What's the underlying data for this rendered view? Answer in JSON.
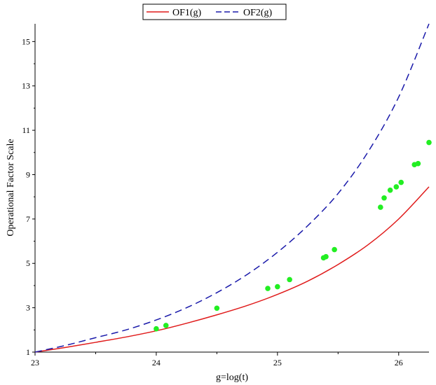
{
  "chart_data": {
    "type": "line",
    "xlabel": "g=log(t)",
    "ylabel": "Operational Factor Scale",
    "xlim": [
      23,
      26.25
    ],
    "ylim": [
      1,
      15.8
    ],
    "x_ticks": [
      23,
      24,
      25,
      26
    ],
    "y_ticks": [
      1,
      3,
      5,
      7,
      9,
      11,
      13,
      15
    ],
    "legend_placement": "top-center",
    "series": [
      {
        "name": "OF1(g)",
        "style": "solid",
        "color": "#e01b1b",
        "x": [
          23.0,
          23.25,
          23.5,
          23.75,
          24.0,
          24.25,
          24.5,
          24.75,
          25.0,
          25.25,
          25.5,
          25.75,
          26.0,
          26.25
        ],
        "y": [
          1.0,
          1.21,
          1.44,
          1.68,
          1.96,
          2.3,
          2.68,
          3.1,
          3.6,
          4.2,
          4.95,
          5.85,
          7.0,
          8.45
        ]
      },
      {
        "name": "OF2(g)",
        "style": "dashed",
        "color": "#1a1aaa",
        "x": [
          23.0,
          23.25,
          23.5,
          23.75,
          24.0,
          24.25,
          24.5,
          24.75,
          25.0,
          25.25,
          25.5,
          25.75,
          26.0,
          26.25
        ],
        "y": [
          1.0,
          1.3,
          1.65,
          2.0,
          2.45,
          3.0,
          3.68,
          4.5,
          5.5,
          6.7,
          8.15,
          10.05,
          12.5,
          15.8
        ]
      },
      {
        "type": "scatter",
        "color": "#22ee22",
        "x": [
          24.0,
          24.08,
          24.5,
          24.92,
          25.0,
          25.1,
          25.38,
          25.4,
          25.47,
          25.85,
          25.88,
          25.93,
          25.98,
          26.02,
          26.13,
          26.16,
          26.25
        ],
        "y": [
          2.05,
          2.2,
          2.98,
          3.87,
          3.95,
          4.27,
          5.25,
          5.3,
          5.62,
          7.53,
          7.95,
          8.3,
          8.45,
          8.65,
          9.45,
          9.5,
          10.45
        ]
      }
    ]
  }
}
